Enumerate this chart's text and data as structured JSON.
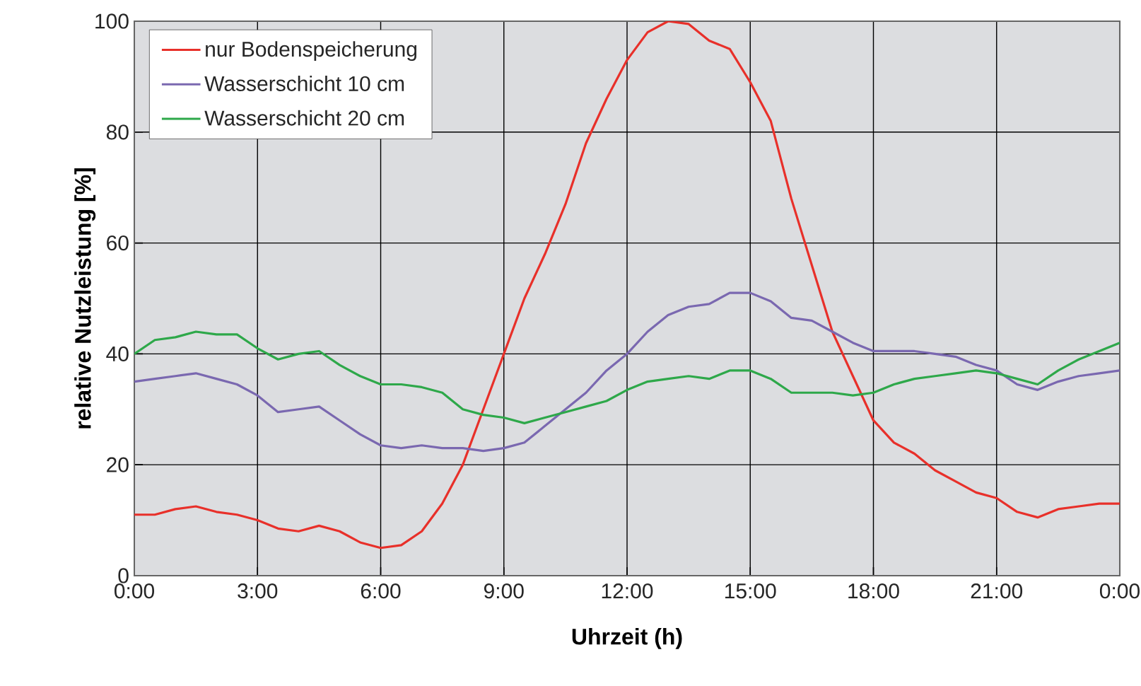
{
  "chart_data": {
    "type": "line",
    "xlabel": "Uhrzeit (h)",
    "ylabel": "relative Nutzleistung [%]",
    "x": [
      0,
      0.5,
      1,
      1.5,
      2,
      2.5,
      3,
      3.5,
      4,
      4.5,
      5,
      5.5,
      6,
      6.5,
      7,
      7.5,
      8,
      8.5,
      9,
      9.5,
      10,
      10.5,
      11,
      11.5,
      12,
      12.5,
      13,
      13.5,
      14,
      14.5,
      15,
      15.5,
      16,
      16.5,
      17,
      17.5,
      18,
      18.5,
      19,
      19.5,
      20,
      20.5,
      21,
      21.5,
      22,
      22.5,
      23,
      23.5,
      24
    ],
    "series": [
      {
        "name": "nur Bodenspeicherung",
        "color": "#e8302a",
        "values": [
          11,
          11,
          12,
          12.5,
          11.5,
          11,
          10,
          8.5,
          8,
          9,
          8,
          6,
          5,
          5.5,
          8,
          13,
          20,
          30,
          40,
          50,
          58,
          67,
          78,
          86,
          93,
          98,
          100,
          99.5,
          96.5,
          95,
          89,
          82,
          68,
          56,
          44,
          36,
          28,
          24,
          22,
          19,
          17,
          15,
          14,
          11.5,
          10.5,
          12,
          12.5,
          13,
          13
        ]
      },
      {
        "name": "Wasserschicht 10 cm",
        "color": "#7a68b0",
        "values": [
          35,
          35.5,
          36,
          36.5,
          35.5,
          34.5,
          32.5,
          29.5,
          30,
          30.5,
          28,
          25.5,
          23.5,
          23,
          23.5,
          23,
          23,
          22.5,
          23,
          24,
          27,
          30,
          33,
          37,
          40,
          44,
          47,
          48.5,
          49,
          51,
          51,
          49.5,
          46.5,
          46,
          44,
          42,
          40.5,
          40.5,
          40.5,
          40,
          39.5,
          38,
          37,
          34.5,
          33.5,
          35,
          36,
          36.5,
          37
        ]
      },
      {
        "name": "Wasserschicht 20 cm",
        "color": "#2ea84a",
        "values": [
          40,
          42.5,
          43,
          44,
          43.5,
          43.5,
          41,
          39,
          40,
          40.5,
          38,
          36,
          34.5,
          34.5,
          34,
          33,
          30,
          29,
          28.5,
          27.5,
          28.5,
          29.5,
          30.5,
          31.5,
          33.5,
          35,
          35.5,
          36,
          35.5,
          37,
          37,
          35.5,
          33,
          33,
          33,
          32.5,
          33,
          34.5,
          35.5,
          36,
          36.5,
          37,
          36.5,
          35.5,
          34.5,
          37,
          39,
          40.5,
          42
        ]
      }
    ],
    "xlim": [
      0,
      24
    ],
    "xticks": [
      {
        "value": 0,
        "label": "0:00"
      },
      {
        "value": 3,
        "label": "3:00"
      },
      {
        "value": 6,
        "label": "6:00"
      },
      {
        "value": 9,
        "label": "9:00"
      },
      {
        "value": 12,
        "label": "12:00"
      },
      {
        "value": 15,
        "label": "15:00"
      },
      {
        "value": 18,
        "label": "18:00"
      },
      {
        "value": 21,
        "label": "21:00"
      },
      {
        "value": 24,
        "label": "0:00"
      }
    ],
    "ylim": [
      0,
      100
    ],
    "yticks": [
      0,
      20,
      40,
      60,
      80,
      100
    ],
    "grid": true,
    "legend": "top left",
    "marker": "none",
    "line_style": "solid"
  }
}
